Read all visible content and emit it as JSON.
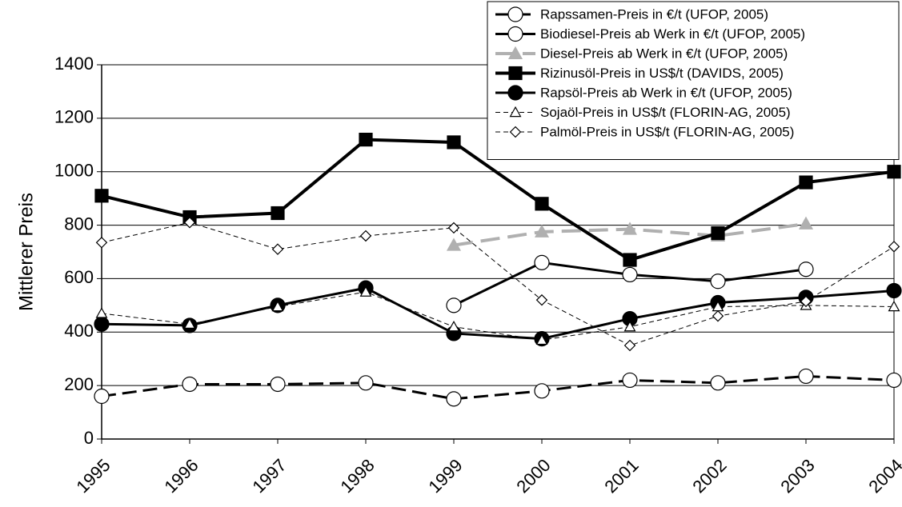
{
  "chart_data": {
    "type": "line",
    "y_label": "Mittlerer Preis",
    "categories": [
      "1995",
      "1996",
      "1997",
      "1998",
      "1999",
      "2000",
      "2001",
      "2002",
      "2003",
      "2004"
    ],
    "ylim": [
      0,
      1400
    ],
    "yticks": [
      0,
      200,
      400,
      600,
      800,
      1000,
      1200,
      1400
    ],
    "grid": true,
    "legend": "upper right",
    "series": [
      {
        "name": "Rapssamen-Preis in €/t (UFOP, 2005)",
        "color": "#000000",
        "dash": "18 8",
        "width": 3,
        "marker": "circle-open",
        "values": [
          160,
          205,
          205,
          210,
          150,
          180,
          220,
          210,
          235,
          220
        ]
      },
      {
        "name": "Biodiesel-Preis ab Werk in €/t (UFOP, 2005)",
        "color": "#000000",
        "dash": "",
        "width": 3,
        "marker": "circle-open",
        "values": [
          null,
          null,
          null,
          null,
          500,
          660,
          615,
          590,
          635,
          null
        ]
      },
      {
        "name": "Diesel-Preis ab Werk in €/t (UFOP, 2005)",
        "color": "#b0b0b0",
        "dash": "24 10",
        "width": 4,
        "marker": "triangle-filled",
        "values": [
          null,
          null,
          null,
          null,
          725,
          775,
          785,
          760,
          805,
          null
        ]
      },
      {
        "name": "Rizinusöl-Preis in US$/t (DAVIDS, 2005)",
        "color": "#000000",
        "dash": "",
        "width": 4,
        "marker": "square-filled",
        "values": [
          910,
          830,
          845,
          1120,
          1110,
          880,
          670,
          770,
          960,
          1000
        ]
      },
      {
        "name": "Rapsöl-Preis ab Werk in €/t (UFOP, 2005)",
        "color": "#000000",
        "dash": "",
        "width": 3,
        "marker": "circle-filled",
        "values": [
          430,
          425,
          500,
          565,
          395,
          375,
          450,
          510,
          530,
          555
        ]
      },
      {
        "name": "Sojaöl-Preis in US$/t (FLORIN-AG, 2005)",
        "color": "#000000",
        "dash": "6 4",
        "width": 1,
        "marker": "triangle-open",
        "values": [
          470,
          430,
          495,
          550,
          420,
          370,
          420,
          495,
          500,
          495
        ]
      },
      {
        "name": "Palmöl-Preis in US$/t (FLORIN-AG, 2005)",
        "color": "#000000",
        "dash": "6 4",
        "width": 1,
        "marker": "diamond-open",
        "values": [
          735,
          810,
          710,
          760,
          790,
          520,
          350,
          460,
          515,
          720
        ]
      }
    ]
  }
}
